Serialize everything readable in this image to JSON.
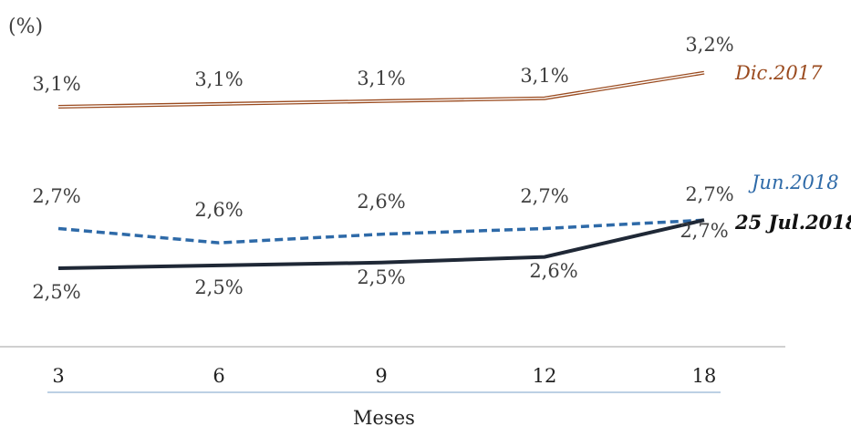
{
  "chart_data": {
    "type": "line",
    "unit_label": "(%)",
    "xlabel": "Meses",
    "categories": [
      "3",
      "6",
      "9",
      "12",
      "18"
    ],
    "value_labels_format": "comma-decimal-percent",
    "series": [
      {
        "name": "Dic.2017",
        "values": [
          3.08,
          3.09,
          3.1,
          3.11,
          3.2
        ],
        "labels": [
          "3,1%",
          "3,1%",
          "3,1%",
          "3,1%",
          "3,2%"
        ],
        "color": "#9a4a1e",
        "style": "double-line",
        "label_position": "above"
      },
      {
        "name": "Jun.2018",
        "values": [
          2.65,
          2.6,
          2.63,
          2.65,
          2.68
        ],
        "labels": [
          "2,7%",
          "2,6%",
          "2,6%",
          "2,7%",
          "2,7%"
        ],
        "color": "#2e6aa8",
        "style": "dashed",
        "label_position": "above"
      },
      {
        "name": "25 Jul.2018",
        "values": [
          2.51,
          2.52,
          2.53,
          2.55,
          2.68
        ],
        "labels": [
          "2,5%",
          "2,5%",
          "2,5%",
          "2,6%",
          "2,7%"
        ],
        "color": "#1f2836",
        "style": "solid",
        "label_position": "below"
      }
    ]
  }
}
